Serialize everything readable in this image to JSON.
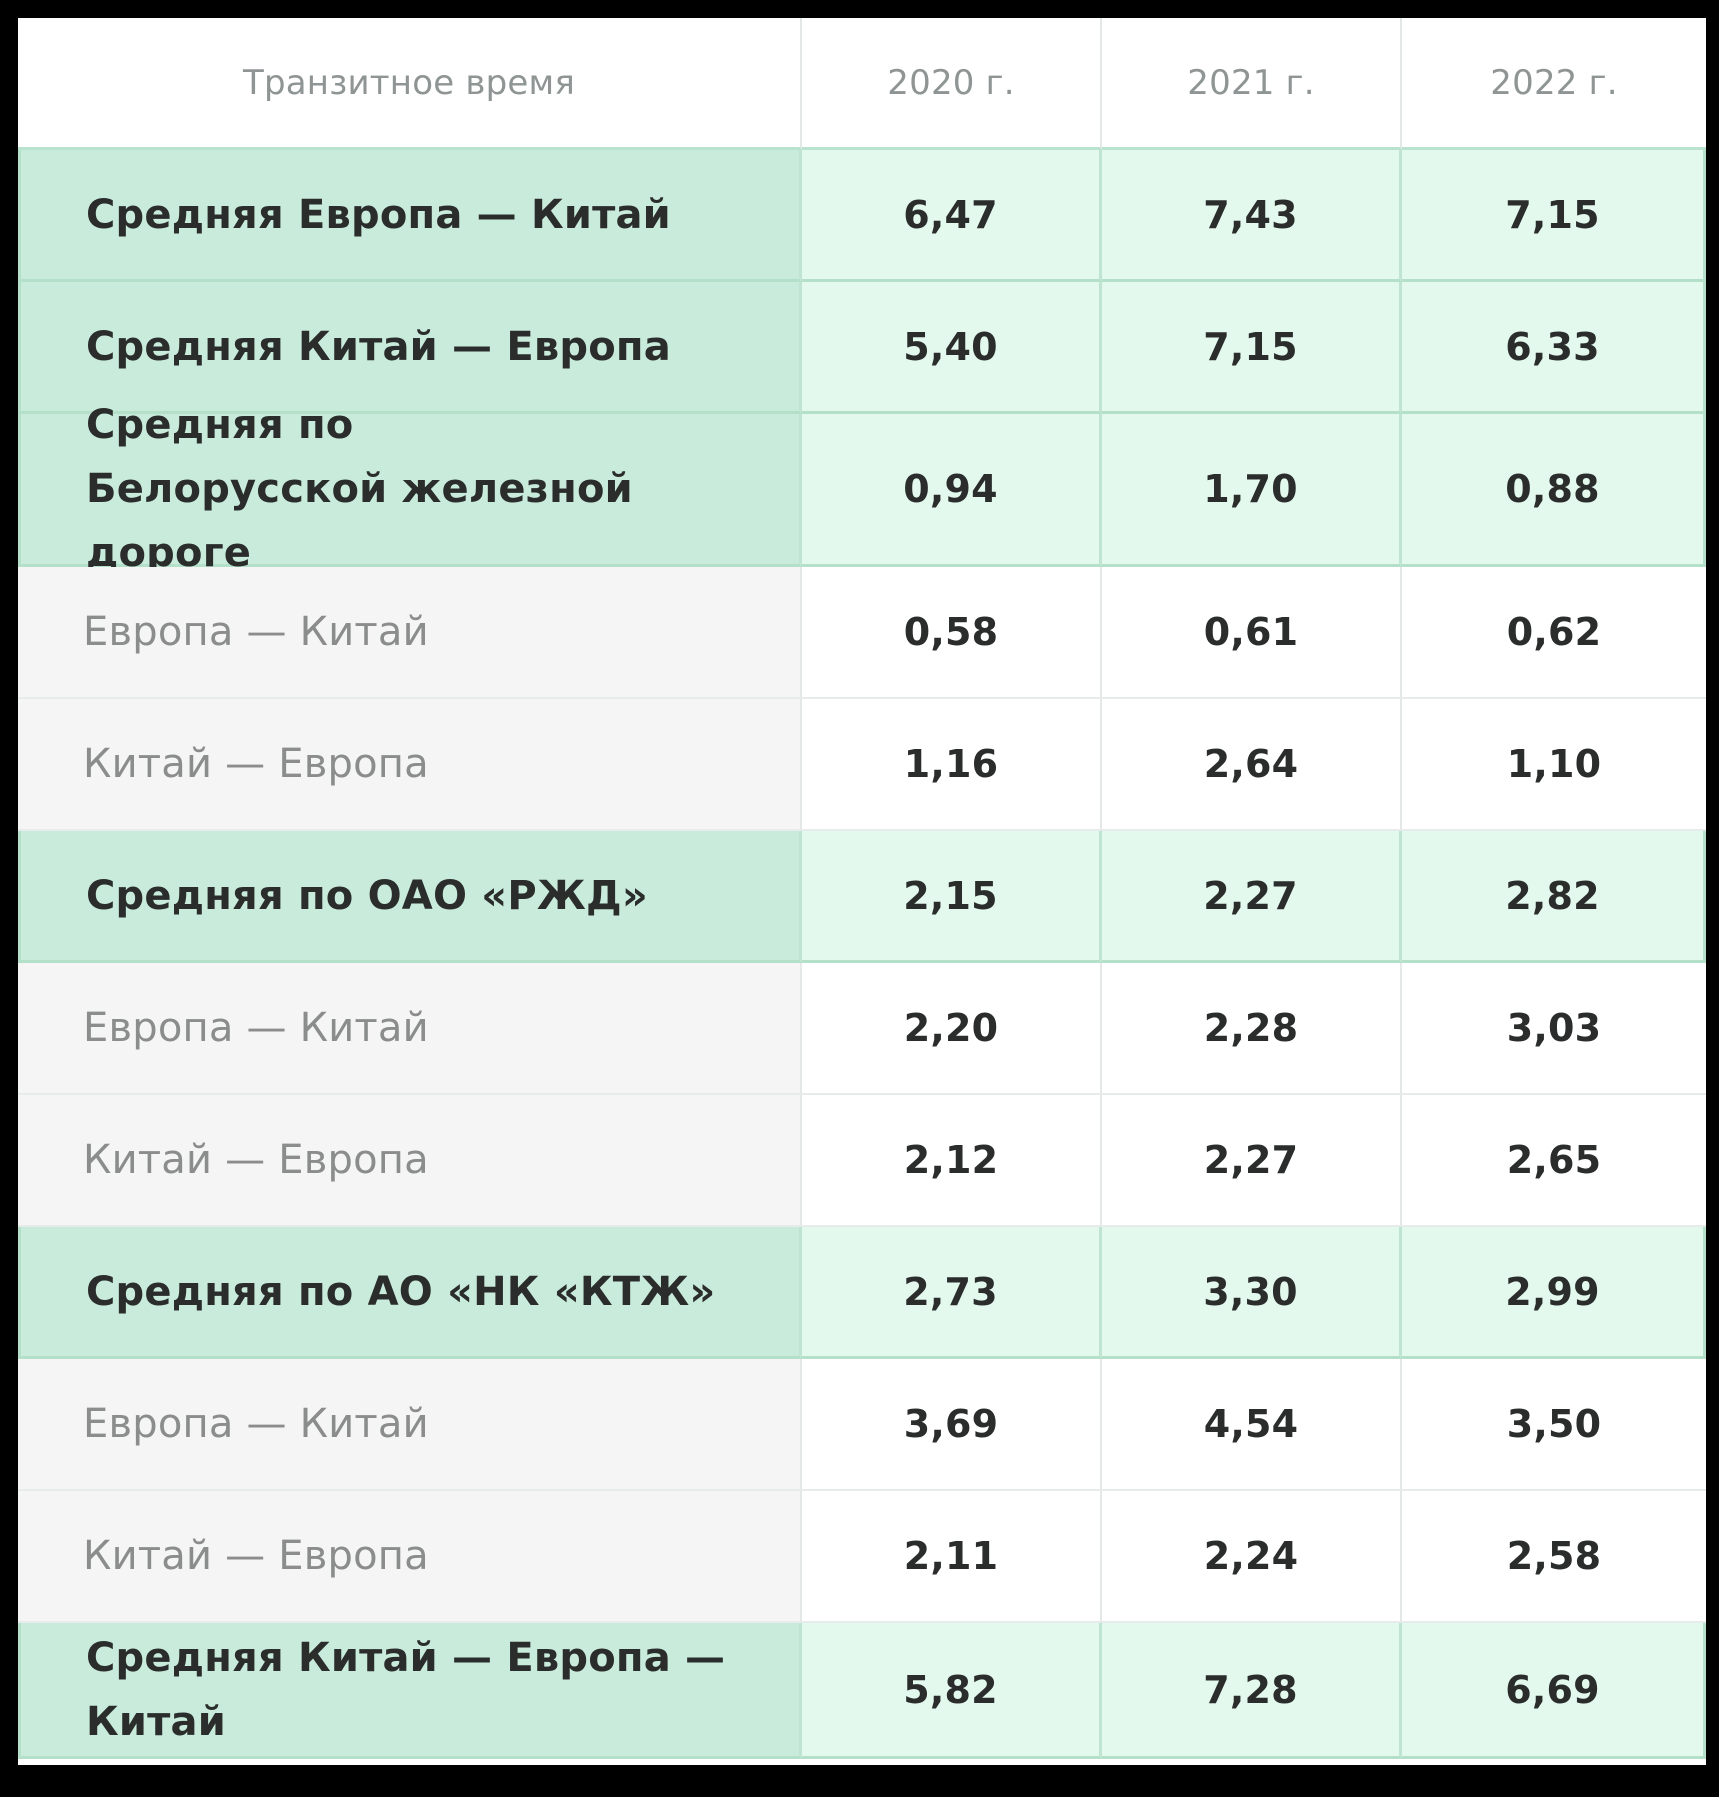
{
  "table": {
    "headers": [
      "Транзитное время",
      "2020 г.",
      "2021 г.",
      "2022 г."
    ],
    "rows": [
      {
        "type": "main",
        "label": "Средняя Европа — Китай",
        "values": [
          "6,47",
          "7,43",
          "7,15"
        ]
      },
      {
        "type": "main",
        "label": "Средняя Китай — Европа",
        "values": [
          "5,40",
          "7,15",
          "6,33"
        ]
      },
      {
        "type": "main",
        "label": "Средняя по Белорусской железной дороге",
        "values": [
          "0,94",
          "1,70",
          "0,88"
        ]
      },
      {
        "type": "sub",
        "label": "Европа — Китай",
        "values": [
          "0,58",
          "0,61",
          "0,62"
        ]
      },
      {
        "type": "sub",
        "label": "Китай — Европа",
        "values": [
          "1,16",
          "2,64",
          "1,10"
        ]
      },
      {
        "type": "main",
        "label": "Средняя по ОАО «РЖД»",
        "values": [
          "2,15",
          "2,27",
          "2,82"
        ]
      },
      {
        "type": "sub",
        "label": "Европа — Китай",
        "values": [
          "2,20",
          "2,28",
          "3,03"
        ]
      },
      {
        "type": "sub",
        "label": "Китай — Европа",
        "values": [
          "2,12",
          "2,27",
          "2,65"
        ]
      },
      {
        "type": "main",
        "label": "Средняя по АО «НК «КТЖ»",
        "values": [
          "2,73",
          "3,30",
          "2,99"
        ]
      },
      {
        "type": "sub",
        "label": "Европа — Китай",
        "values": [
          "3,69",
          "4,54",
          "3,50"
        ]
      },
      {
        "type": "sub",
        "label": "Китай — Европа",
        "values": [
          "2,11",
          "2,24",
          "2,58"
        ]
      },
      {
        "type": "main",
        "label": "Средняя Китай — Европа — Китай",
        "values": [
          "5,82",
          "7,28",
          "6,69"
        ]
      }
    ]
  }
}
